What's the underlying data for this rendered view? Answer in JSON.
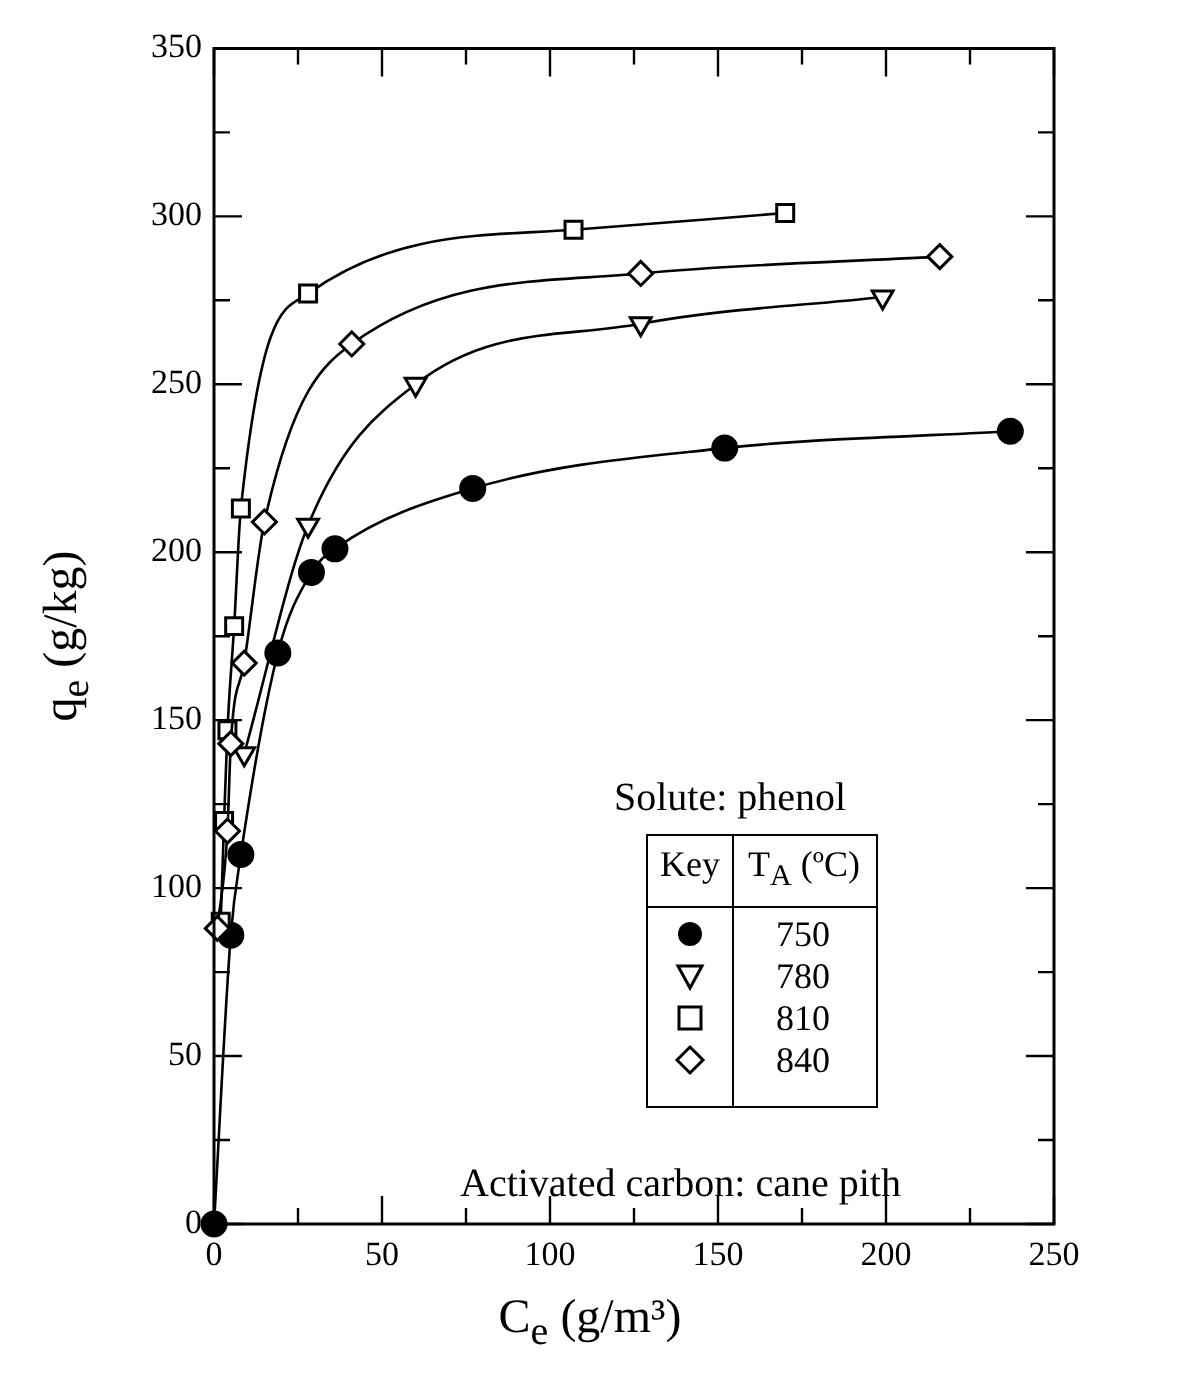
{
  "chart_data": {
    "type": "line",
    "xlabel": "C$_{e}$  (g/m³)",
    "ylabel": "q$_{e}$  (g/kg)",
    "legend_title": "T$_{A}$ (ºC)",
    "legend": "right",
    "line_style": "solid",
    "grid": false,
    "annotations": [
      "Solute: phenol",
      "Key",
      "Activated carbon: cane pith"
    ],
    "xlim": [
      0,
      250
    ],
    "xticks": [
      0,
      {
        "value": 25,
        "label": null
      },
      50,
      {
        "value": 75,
        "label": null
      },
      100,
      {
        "value": 125,
        "label": null
      },
      150,
      {
        "value": 175,
        "label": null
      },
      200,
      {
        "value": 225,
        "label": null
      },
      250
    ],
    "ylim": [
      0,
      350
    ],
    "yticks": [
      0,
      {
        "value": 25,
        "label": null
      },
      50,
      {
        "value": 75,
        "label": null
      },
      100,
      {
        "value": 125,
        "label": null
      },
      150,
      {
        "value": 175,
        "label": null
      },
      200,
      {
        "value": 225,
        "label": null
      },
      250,
      {
        "value": 275,
        "label": null
      },
      300,
      {
        "value": 325,
        "label": null
      },
      350
    ],
    "series": [
      {
        "name": "750",
        "color": "#000000",
        "marker": "circle",
        "x": [
          0,
          5,
          8,
          19,
          29,
          36,
          77,
          152,
          237
        ],
        "values": [
          0,
          86,
          110,
          170,
          194,
          201,
          219,
          231,
          236
        ]
      },
      {
        "name": "780",
        "color": "#000000",
        "marker": "triangle",
        "x": [
          9,
          28,
          60,
          127,
          199
        ],
        "values": [
          140,
          208,
          250,
          268,
          276
        ]
      },
      {
        "name": "810",
        "color": "#000000",
        "marker": "square",
        "x": [
          2,
          3,
          4,
          6,
          8,
          28,
          107,
          170
        ],
        "values": [
          90,
          120,
          147,
          178,
          213,
          277,
          296,
          301
        ]
      },
      {
        "name": "840",
        "color": "#000000",
        "marker": "diamond",
        "x": [
          1,
          4,
          5,
          9,
          15,
          41,
          127,
          216
        ],
        "values": [
          88,
          117,
          143,
          167,
          209,
          262,
          283,
          288
        ]
      }
    ]
  }
}
